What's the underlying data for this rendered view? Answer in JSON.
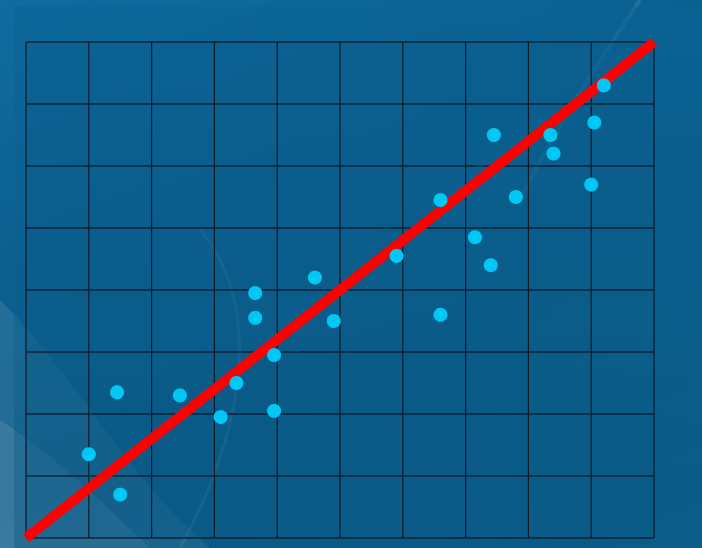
{
  "chart_data": {
    "type": "scatter",
    "title": "",
    "xlabel": "",
    "ylabel": "",
    "xlim": [
      0,
      10
    ],
    "ylim": [
      0,
      8
    ],
    "grid": true,
    "x_gridlines": 10,
    "y_gridlines": 8,
    "series": [
      {
        "type": "scatter",
        "color": "#00c8f5",
        "points": [
          {
            "x": 1.0,
            "y": 1.35
          },
          {
            "x": 1.45,
            "y": 2.35
          },
          {
            "x": 1.5,
            "y": 0.7
          },
          {
            "x": 2.45,
            "y": 2.3
          },
          {
            "x": 3.1,
            "y": 1.95
          },
          {
            "x": 3.35,
            "y": 2.5
          },
          {
            "x": 3.65,
            "y": 3.55
          },
          {
            "x": 3.65,
            "y": 3.95
          },
          {
            "x": 3.95,
            "y": 2.05
          },
          {
            "x": 3.95,
            "y": 2.95
          },
          {
            "x": 4.6,
            "y": 4.2
          },
          {
            "x": 4.9,
            "y": 3.5
          },
          {
            "x": 5.9,
            "y": 4.55
          },
          {
            "x": 6.6,
            "y": 3.6
          },
          {
            "x": 6.6,
            "y": 5.45
          },
          {
            "x": 7.15,
            "y": 4.85
          },
          {
            "x": 7.4,
            "y": 4.4
          },
          {
            "x": 7.45,
            "y": 6.5
          },
          {
            "x": 7.8,
            "y": 5.5
          },
          {
            "x": 8.35,
            "y": 6.5
          },
          {
            "x": 8.4,
            "y": 6.2
          },
          {
            "x": 9.0,
            "y": 5.7
          },
          {
            "x": 9.05,
            "y": 6.7
          },
          {
            "x": 9.2,
            "y": 7.3
          }
        ]
      },
      {
        "type": "line",
        "color": "#ff0000",
        "points": [
          {
            "x": 0,
            "y": 0
          },
          {
            "x": 10,
            "y": 8
          }
        ]
      }
    ]
  },
  "colors": {
    "grid": "#0a1a24",
    "plot_area": "#0b5c8a",
    "background": "#0b5f8f"
  }
}
